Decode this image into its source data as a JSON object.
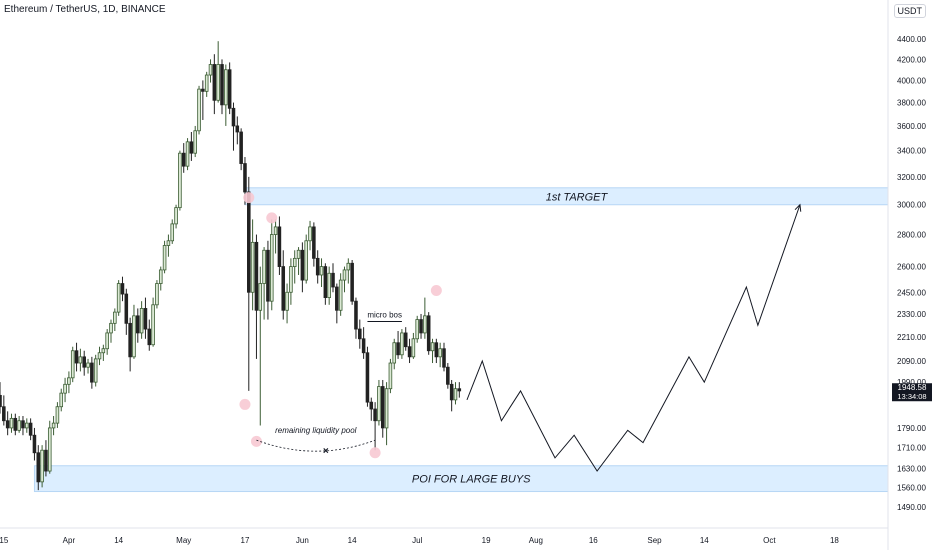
{
  "header": {
    "symbol_title": "Ethereum / TetherUS, 1D, BINANCE",
    "currency": "USDT",
    "currency_arrow": "↓"
  },
  "price_tag": {
    "price": "1948.58",
    "countdown": "13:34:08",
    "color": "#131722"
  },
  "colors": {
    "up_fill": "#dbe9d4",
    "up_border": "#3c5d34",
    "down_fill": "#222222",
    "zone_fill": "#dceeff",
    "zone_border": "#b7d6f5",
    "marker_fill": "#f7c9d3"
  },
  "annotations": {
    "target_zone_label": "1st TARGET",
    "poi_zone_label": "POI FOR LARGE BUYS",
    "micro_bos_label": "micro bos",
    "liquidity_label": "remaining liquidity pool",
    "liquidity_x_mark": "×"
  },
  "chart_data": {
    "type": "candlestick",
    "title": "Ethereum / TetherUS, 1D, BINANCE",
    "y_axis": {
      "scale": "log",
      "ticks": [
        4400,
        4200,
        4000,
        3800,
        3600,
        3400,
        3200,
        3000,
        2800,
        2600,
        2450,
        2330,
        2210,
        2090,
        1990,
        1790,
        1710,
        1630,
        1560,
        1490
      ],
      "tick_labels": [
        "4400.00",
        "4200.00",
        "4000.00",
        "3800.00",
        "3600.00",
        "3400.00",
        "3200.00",
        "3000.00",
        "2800.00",
        "2600.00",
        "2450.00",
        "2330.00",
        "2210.00",
        "2090.00",
        "1990.00",
        "1790.00",
        "1710.00",
        "1630.00",
        "1560.00",
        "1490.00"
      ],
      "range": [
        1420,
        4600
      ]
    },
    "x_axis": {
      "tick_labels": [
        "15",
        "Apr",
        "14",
        "May",
        "17",
        "Jun",
        "14",
        "Jul",
        "19",
        "Aug",
        "16",
        "Sep",
        "14",
        "Oct",
        "18"
      ],
      "tick_days": [
        -17,
        0,
        13,
        30,
        46,
        61,
        74,
        91,
        109,
        122,
        137,
        153,
        166,
        183,
        200
      ],
      "range_days": [
        -18,
        214
      ]
    },
    "candles": [
      {
        "day": -18,
        "o": 1930,
        "h": 1990,
        "l": 1850,
        "c": 1880
      },
      {
        "day": -17,
        "o": 1880,
        "h": 1930,
        "l": 1800,
        "c": 1820
      },
      {
        "day": -16,
        "o": 1820,
        "h": 1860,
        "l": 1760,
        "c": 1790
      },
      {
        "day": -15,
        "o": 1790,
        "h": 1850,
        "l": 1770,
        "c": 1830
      },
      {
        "day": -14,
        "o": 1830,
        "h": 1850,
        "l": 1760,
        "c": 1780
      },
      {
        "day": -13,
        "o": 1780,
        "h": 1840,
        "l": 1770,
        "c": 1820
      },
      {
        "day": -12,
        "o": 1820,
        "h": 1840,
        "l": 1760,
        "c": 1790
      },
      {
        "day": -11,
        "o": 1790,
        "h": 1830,
        "l": 1770,
        "c": 1810
      },
      {
        "day": -10,
        "o": 1810,
        "h": 1830,
        "l": 1740,
        "c": 1760
      },
      {
        "day": -9,
        "o": 1760,
        "h": 1790,
        "l": 1660,
        "c": 1690
      },
      {
        "day": -8,
        "o": 1690,
        "h": 1720,
        "l": 1550,
        "c": 1580
      },
      {
        "day": -7,
        "o": 1580,
        "h": 1720,
        "l": 1560,
        "c": 1700
      },
      {
        "day": -6,
        "o": 1700,
        "h": 1740,
        "l": 1600,
        "c": 1620
      },
      {
        "day": -5,
        "o": 1620,
        "h": 1820,
        "l": 1610,
        "c": 1790
      },
      {
        "day": -4,
        "o": 1790,
        "h": 1840,
        "l": 1760,
        "c": 1810
      },
      {
        "day": -3,
        "o": 1810,
        "h": 1900,
        "l": 1790,
        "c": 1880
      },
      {
        "day": -2,
        "o": 1880,
        "h": 1960,
        "l": 1860,
        "c": 1940
      },
      {
        "day": -1,
        "o": 1940,
        "h": 2010,
        "l": 1900,
        "c": 1980
      },
      {
        "day": 0,
        "o": 1980,
        "h": 2040,
        "l": 1940,
        "c": 2010
      },
      {
        "day": 1,
        "o": 2010,
        "h": 2160,
        "l": 1990,
        "c": 2140
      },
      {
        "day": 2,
        "o": 2140,
        "h": 2180,
        "l": 2040,
        "c": 2080
      },
      {
        "day": 3,
        "o": 2080,
        "h": 2150,
        "l": 2040,
        "c": 2110
      },
      {
        "day": 4,
        "o": 2110,
        "h": 2140,
        "l": 2020,
        "c": 2060
      },
      {
        "day": 5,
        "o": 2060,
        "h": 2100,
        "l": 2030,
        "c": 2080
      },
      {
        "day": 6,
        "o": 2080,
        "h": 2110,
        "l": 1960,
        "c": 1990
      },
      {
        "day": 7,
        "o": 1990,
        "h": 2120,
        "l": 1970,
        "c": 2100
      },
      {
        "day": 8,
        "o": 2100,
        "h": 2160,
        "l": 2070,
        "c": 2130
      },
      {
        "day": 9,
        "o": 2130,
        "h": 2170,
        "l": 2090,
        "c": 2150
      },
      {
        "day": 10,
        "o": 2150,
        "h": 2250,
        "l": 2120,
        "c": 2230
      },
      {
        "day": 11,
        "o": 2230,
        "h": 2300,
        "l": 2180,
        "c": 2280
      },
      {
        "day": 12,
        "o": 2280,
        "h": 2360,
        "l": 2240,
        "c": 2340
      },
      {
        "day": 13,
        "o": 2340,
        "h": 2520,
        "l": 2320,
        "c": 2500
      },
      {
        "day": 14,
        "o": 2500,
        "h": 2540,
        "l": 2400,
        "c": 2440
      },
      {
        "day": 15,
        "o": 2440,
        "h": 2470,
        "l": 2220,
        "c": 2280
      },
      {
        "day": 16,
        "o": 2280,
        "h": 2310,
        "l": 2040,
        "c": 2110
      },
      {
        "day": 17,
        "o": 2110,
        "h": 2380,
        "l": 2100,
        "c": 2320
      },
      {
        "day": 18,
        "o": 2320,
        "h": 2360,
        "l": 2180,
        "c": 2230
      },
      {
        "day": 19,
        "o": 2230,
        "h": 2400,
        "l": 2200,
        "c": 2360
      },
      {
        "day": 20,
        "o": 2360,
        "h": 2420,
        "l": 2200,
        "c": 2250
      },
      {
        "day": 21,
        "o": 2250,
        "h": 2300,
        "l": 2140,
        "c": 2170
      },
      {
        "day": 22,
        "o": 2170,
        "h": 2420,
        "l": 2160,
        "c": 2380
      },
      {
        "day": 23,
        "o": 2380,
        "h": 2520,
        "l": 2360,
        "c": 2500
      },
      {
        "day": 24,
        "o": 2500,
        "h": 2600,
        "l": 2460,
        "c": 2580
      },
      {
        "day": 25,
        "o": 2580,
        "h": 2760,
        "l": 2560,
        "c": 2730
      },
      {
        "day": 26,
        "o": 2730,
        "h": 2800,
        "l": 2660,
        "c": 2760
      },
      {
        "day": 27,
        "o": 2760,
        "h": 2900,
        "l": 2740,
        "c": 2870
      },
      {
        "day": 28,
        "o": 2870,
        "h": 3000,
        "l": 2840,
        "c": 2980
      },
      {
        "day": 29,
        "o": 2980,
        "h": 3400,
        "l": 2960,
        "c": 3380
      },
      {
        "day": 30,
        "o": 3380,
        "h": 3460,
        "l": 3230,
        "c": 3280
      },
      {
        "day": 31,
        "o": 3280,
        "h": 3500,
        "l": 3250,
        "c": 3470
      },
      {
        "day": 32,
        "o": 3470,
        "h": 3550,
        "l": 3320,
        "c": 3380
      },
      {
        "day": 33,
        "o": 3380,
        "h": 3600,
        "l": 3350,
        "c": 3560
      },
      {
        "day": 34,
        "o": 3560,
        "h": 3950,
        "l": 3530,
        "c": 3920
      },
      {
        "day": 35,
        "o": 3920,
        "h": 4000,
        "l": 3650,
        "c": 3900
      },
      {
        "day": 36,
        "o": 3900,
        "h": 4080,
        "l": 3850,
        "c": 4050
      },
      {
        "day": 37,
        "o": 4050,
        "h": 4200,
        "l": 3980,
        "c": 4150
      },
      {
        "day": 38,
        "o": 4150,
        "h": 4250,
        "l": 3700,
        "c": 3820
      },
      {
        "day": 39,
        "o": 3820,
        "h": 4380,
        "l": 3800,
        "c": 4150
      },
      {
        "day": 40,
        "o": 4150,
        "h": 4200,
        "l": 3700,
        "c": 3780
      },
      {
        "day": 41,
        "o": 3780,
        "h": 4150,
        "l": 3600,
        "c": 4100
      },
      {
        "day": 42,
        "o": 4100,
        "h": 4170,
        "l": 3700,
        "c": 3750
      },
      {
        "day": 43,
        "o": 3750,
        "h": 3800,
        "l": 3400,
        "c": 3600
      },
      {
        "day": 44,
        "o": 3600,
        "h": 3680,
        "l": 3450,
        "c": 3550
      },
      {
        "day": 45,
        "o": 3550,
        "h": 3580,
        "l": 3250,
        "c": 3300
      },
      {
        "day": 46,
        "o": 3300,
        "h": 3350,
        "l": 3000,
        "c": 3090
      },
      {
        "day": 47,
        "o": 3090,
        "h": 3200,
        "l": 1950,
        "c": 2450
      },
      {
        "day": 48,
        "o": 2450,
        "h": 2900,
        "l": 2350,
        "c": 2750
      },
      {
        "day": 49,
        "o": 2750,
        "h": 2800,
        "l": 2100,
        "c": 2350
      },
      {
        "day": 50,
        "o": 2350,
        "h": 2600,
        "l": 1800,
        "c": 2500
      },
      {
        "day": 51,
        "o": 2500,
        "h": 2720,
        "l": 2300,
        "c": 2700
      },
      {
        "day": 52,
        "o": 2700,
        "h": 2760,
        "l": 2300,
        "c": 2400
      },
      {
        "day": 53,
        "o": 2400,
        "h": 2900,
        "l": 2350,
        "c": 2800
      },
      {
        "day": 54,
        "o": 2800,
        "h": 2900,
        "l": 2680,
        "c": 2850
      },
      {
        "day": 55,
        "o": 2850,
        "h": 2920,
        "l": 2550,
        "c": 2600
      },
      {
        "day": 56,
        "o": 2600,
        "h": 2700,
        "l": 2300,
        "c": 2350
      },
      {
        "day": 57,
        "o": 2350,
        "h": 2500,
        "l": 2280,
        "c": 2450
      },
      {
        "day": 58,
        "o": 2450,
        "h": 2650,
        "l": 2380,
        "c": 2600
      },
      {
        "day": 59,
        "o": 2600,
        "h": 2700,
        "l": 2500,
        "c": 2650
      },
      {
        "day": 60,
        "o": 2650,
        "h": 2720,
        "l": 2550,
        "c": 2700
      },
      {
        "day": 61,
        "o": 2700,
        "h": 2750,
        "l": 2450,
        "c": 2520
      },
      {
        "day": 62,
        "o": 2520,
        "h": 2800,
        "l": 2500,
        "c": 2760
      },
      {
        "day": 63,
        "o": 2760,
        "h": 2890,
        "l": 2700,
        "c": 2850
      },
      {
        "day": 64,
        "o": 2850,
        "h": 2880,
        "l": 2600,
        "c": 2650
      },
      {
        "day": 65,
        "o": 2650,
        "h": 2700,
        "l": 2500,
        "c": 2550
      },
      {
        "day": 66,
        "o": 2550,
        "h": 2650,
        "l": 2480,
        "c": 2600
      },
      {
        "day": 67,
        "o": 2600,
        "h": 2620,
        "l": 2380,
        "c": 2420
      },
      {
        "day": 68,
        "o": 2420,
        "h": 2600,
        "l": 2380,
        "c": 2560
      },
      {
        "day": 69,
        "o": 2560,
        "h": 2620,
        "l": 2450,
        "c": 2480
      },
      {
        "day": 70,
        "o": 2480,
        "h": 2500,
        "l": 2280,
        "c": 2350
      },
      {
        "day": 71,
        "o": 2350,
        "h": 2560,
        "l": 2320,
        "c": 2520
      },
      {
        "day": 72,
        "o": 2520,
        "h": 2600,
        "l": 2450,
        "c": 2580
      },
      {
        "day": 73,
        "o": 2580,
        "h": 2650,
        "l": 2500,
        "c": 2620
      },
      {
        "day": 74,
        "o": 2620,
        "h": 2640,
        "l": 2380,
        "c": 2400
      },
      {
        "day": 75,
        "o": 2400,
        "h": 2420,
        "l": 2200,
        "c": 2250
      },
      {
        "day": 76,
        "o": 2250,
        "h": 2300,
        "l": 2150,
        "c": 2200
      },
      {
        "day": 77,
        "o": 2200,
        "h": 2260,
        "l": 2100,
        "c": 2130
      },
      {
        "day": 78,
        "o": 2130,
        "h": 2160,
        "l": 1880,
        "c": 1900
      },
      {
        "day": 79,
        "o": 1900,
        "h": 1920,
        "l": 1820,
        "c": 1870
      },
      {
        "day": 80,
        "o": 1870,
        "h": 1900,
        "l": 1700,
        "c": 1820
      },
      {
        "day": 81,
        "o": 1820,
        "h": 2000,
        "l": 1800,
        "c": 1970
      },
      {
        "day": 82,
        "o": 1970,
        "h": 2000,
        "l": 1750,
        "c": 1790
      },
      {
        "day": 83,
        "o": 1790,
        "h": 1990,
        "l": 1720,
        "c": 1960
      },
      {
        "day": 84,
        "o": 1960,
        "h": 2100,
        "l": 1940,
        "c": 2080
      },
      {
        "day": 85,
        "o": 2080,
        "h": 2200,
        "l": 2050,
        "c": 2180
      },
      {
        "day": 86,
        "o": 2180,
        "h": 2240,
        "l": 2100,
        "c": 2120
      },
      {
        "day": 87,
        "o": 2120,
        "h": 2250,
        "l": 2100,
        "c": 2230
      },
      {
        "day": 88,
        "o": 2230,
        "h": 2260,
        "l": 2140,
        "c": 2160
      },
      {
        "day": 89,
        "o": 2160,
        "h": 2200,
        "l": 2080,
        "c": 2110
      },
      {
        "day": 90,
        "o": 2110,
        "h": 2230,
        "l": 2100,
        "c": 2200
      },
      {
        "day": 91,
        "o": 2200,
        "h": 2320,
        "l": 2180,
        "c": 2300
      },
      {
        "day": 92,
        "o": 2300,
        "h": 2330,
        "l": 2200,
        "c": 2230
      },
      {
        "day": 93,
        "o": 2230,
        "h": 2420,
        "l": 2200,
        "c": 2320
      },
      {
        "day": 94,
        "o": 2320,
        "h": 2340,
        "l": 2120,
        "c": 2140
      },
      {
        "day": 95,
        "o": 2140,
        "h": 2200,
        "l": 2080,
        "c": 2180
      },
      {
        "day": 96,
        "o": 2180,
        "h": 2200,
        "l": 2080,
        "c": 2110
      },
      {
        "day": 97,
        "o": 2110,
        "h": 2180,
        "l": 2060,
        "c": 2150
      },
      {
        "day": 98,
        "o": 2150,
        "h": 2180,
        "l": 2040,
        "c": 2060
      },
      {
        "day": 99,
        "o": 2060,
        "h": 2080,
        "l": 1960,
        "c": 1980
      },
      {
        "day": 100,
        "o": 1980,
        "h": 2000,
        "l": 1860,
        "c": 1910
      },
      {
        "day": 101,
        "o": 1910,
        "h": 1990,
        "l": 1890,
        "c": 1960
      },
      {
        "day": 102,
        "o": 1960,
        "h": 1990,
        "l": 1920,
        "c": 1950
      }
    ],
    "projection": {
      "points": [
        {
          "day": 104,
          "price": 1910
        },
        {
          "day": 108,
          "price": 2090
        },
        {
          "day": 113,
          "price": 1820
        },
        {
          "day": 118,
          "price": 1950
        },
        {
          "day": 127,
          "price": 1670
        },
        {
          "day": 132,
          "price": 1760
        },
        {
          "day": 138,
          "price": 1620
        },
        {
          "day": 146,
          "price": 1780
        },
        {
          "day": 150,
          "price": 1730
        },
        {
          "day": 162,
          "price": 2110
        },
        {
          "day": 166,
          "price": 1990
        },
        {
          "day": 177,
          "price": 2480
        },
        {
          "day": 180,
          "price": 2270
        },
        {
          "day": 191,
          "price": 3000
        }
      ],
      "arrow": true
    },
    "zones": [
      {
        "label": "1st TARGET",
        "from_day": 46,
        "to_day": 214,
        "low": 3000,
        "high": 3120
      },
      {
        "label": "POI FOR LARGE BUYS",
        "from_day": -9,
        "to_day": 214,
        "low": 1545,
        "high": 1640
      }
    ],
    "micro_bos": {
      "label": "micro bos",
      "price": 2290,
      "from_day": 78,
      "to_day": 87
    },
    "liquidity_pool": {
      "label": "remaining liquidity pool",
      "from_day": 49,
      "to_day": 80,
      "price": 1740
    },
    "markers": [
      {
        "day": 46,
        "price": 1890
      },
      {
        "day": 47,
        "price": 3050
      },
      {
        "day": 53,
        "price": 2910
      },
      {
        "day": 49,
        "price": 1735
      },
      {
        "day": 80,
        "price": 1690
      },
      {
        "day": 96,
        "price": 2460
      }
    ],
    "last_price": 1948.58
  }
}
